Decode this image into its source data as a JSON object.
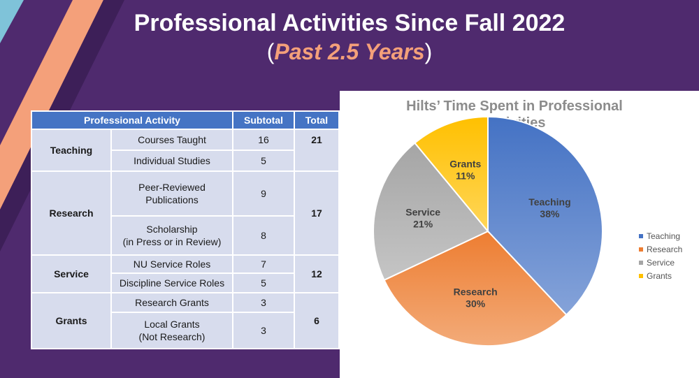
{
  "slide": {
    "title": "Professional Activities Since Fall 2022",
    "subtitle_open": "(",
    "subtitle_accent": "Past 2.5 Years",
    "subtitle_close": ")"
  },
  "table": {
    "headers": [
      "Professional Activity",
      "Subtotal",
      "Total"
    ],
    "categories": [
      {
        "name": "Teaching",
        "total": "21",
        "items": [
          {
            "activity": "Courses Taught",
            "subtotal": "16"
          },
          {
            "activity": "Individual Studies",
            "subtotal": "5"
          }
        ]
      },
      {
        "name": "Research",
        "total": "17",
        "items": [
          {
            "activity_line1": "Peer-Reviewed",
            "activity_line2": "Publications",
            "subtotal": "9"
          },
          {
            "activity_line1": "Scholarship",
            "activity_line2": "(in Press or in Review)",
            "subtotal": "8"
          }
        ]
      },
      {
        "name": "Service",
        "total": "12",
        "items": [
          {
            "activity": "NU Service Roles",
            "subtotal": "7"
          },
          {
            "activity": "Discipline Service Roles",
            "subtotal": "5"
          }
        ]
      },
      {
        "name": "Grants",
        "total": "6",
        "items": [
          {
            "activity": "Research Grants",
            "subtotal": "3"
          },
          {
            "activity_line1": "Local Grants",
            "activity_line2": "(Not Research)",
            "subtotal": "3"
          }
        ]
      }
    ]
  },
  "chart_data": {
    "type": "pie",
    "title_line1": "Hilts’ Time Spent in Professional",
    "title_line2": "Activities",
    "categories": [
      "Teaching",
      "Research",
      "Service",
      "Grants"
    ],
    "values": [
      38,
      30,
      21,
      11
    ],
    "labels": [
      "38%",
      "30%",
      "21%",
      "11%"
    ],
    "colors": [
      "#4472c4",
      "#ed7d31",
      "#a5a5a5",
      "#ffc000"
    ],
    "legend_position": "right",
    "data_labels": "inside (category + percent)"
  }
}
